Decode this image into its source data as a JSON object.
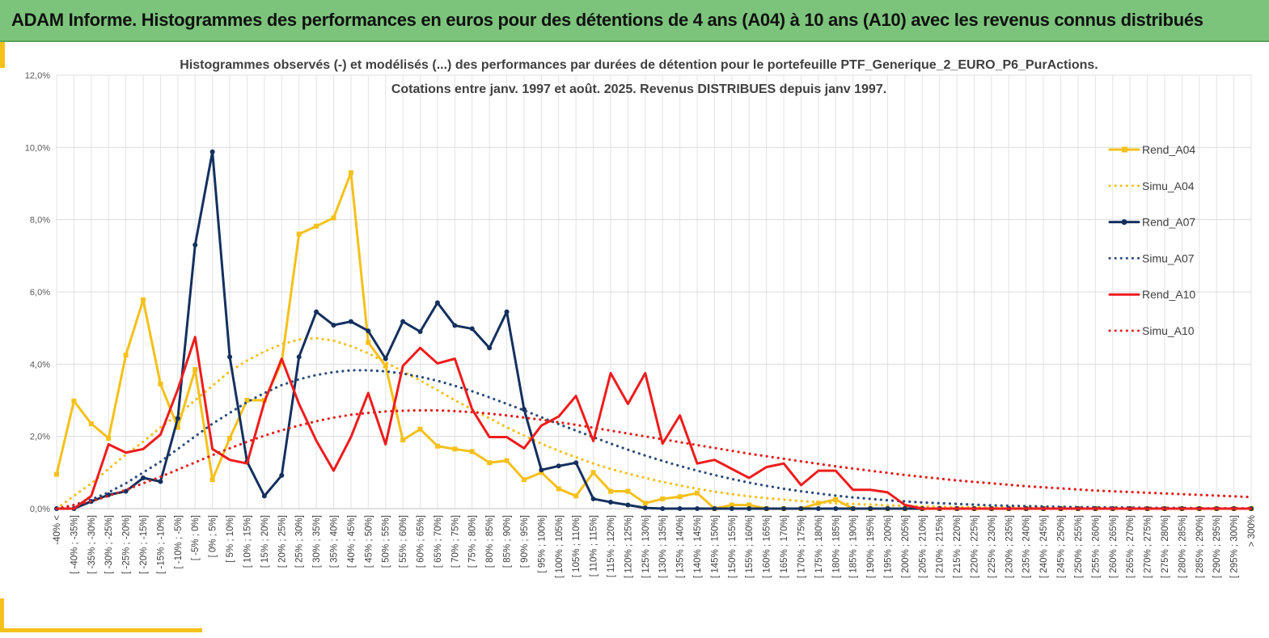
{
  "header": {
    "title": "ADAM Informe. Histogrammes des performances en euros pour des détentions de 4 ans (A04) à 10 ans (A10) avec les revenus connus distribués"
  },
  "chart_data": {
    "type": "line",
    "title": "Histogrammes observés (-) et modélisés (...) des performances par durées de détention pour le portefeuille PTF_Generique_2_EURO_P6_PurActions.",
    "subtitle": "Cotations entre janv. 1997 et août. 2025. Revenus DISTRIBUES depuis janv 1997.",
    "xlabel": "",
    "ylabel": "",
    "ylim": [
      0,
      12
    ],
    "y_unit": "%",
    "y_ticks": [
      "0,0%",
      "2,0%",
      "4,0%",
      "6,0%",
      "8,0%",
      "10,0%",
      "12,0%"
    ],
    "grid": true,
    "legend_position": "right",
    "categories": [
      "-40% <",
      "[ -40% ; -35%]",
      "[ -35% ; -30%]",
      "[ -30% ; -25%]",
      "[ -25% ; -20%]",
      "[ -20% ; -15%]",
      "[ -15% ; -10%]",
      "[ -10% ; -5%]",
      "[ -5% ; 0%]",
      "[ 0% ; 5%]",
      "[ 5% ; 10%]",
      "[ 10% ; 15%]",
      "[ 15% ; 20%]",
      "[ 20% ; 25%]",
      "[ 25% ; 30%]",
      "[ 30% ; 35%]",
      "[ 35% ; 40%]",
      "[ 40% ; 45%]",
      "[ 45% ; 50%]",
      "[ 50% ; 55%]",
      "[ 55% ; 60%]",
      "[ 60% ; 65%]",
      "[ 65% ; 70%]",
      "[ 70% ; 75%]",
      "[ 75% ; 80%]",
      "[ 80% ; 85%]",
      "[ 85% ; 90%]",
      "[ 90% ; 95%]",
      "[ 95% ; 100%]",
      "[ 100% ; 105%]",
      "[ 105% ; 110%]",
      "[ 110% ; 115%]",
      "[ 115% ; 120%]",
      "[ 120% ; 125%]",
      "[ 125% ; 130%]",
      "[ 130% ; 135%]",
      "[ 135% ; 140%]",
      "[ 140% ; 145%]",
      "[ 145% ; 150%]",
      "[ 150% ; 155%]",
      "[ 155% ; 160%]",
      "[ 160% ; 165%]",
      "[ 165% ; 170%]",
      "[ 170% ; 175%]",
      "[ 175% ; 180%]",
      "[ 180% ; 185%]",
      "[ 185% ; 190%]",
      "[ 190% ; 195%]",
      "[ 195% ; 200%]",
      "[ 200% ; 205%]",
      "[ 205% ; 210%]",
      "[ 210% ; 215%]",
      "[ 215% ; 220%]",
      "[ 220% ; 225%]",
      "[ 225% ; 230%]",
      "[ 230% ; 235%]",
      "[ 235% ; 240%]",
      "[ 240% ; 245%]",
      "[ 245% ; 250%]",
      "[ 250% ; 255%]",
      "[ 255% ; 260%]",
      "[ 260% ; 265%]",
      "[ 265% ; 270%]",
      "[ 270% ; 275%]",
      "[ 275% ; 280%]",
      "[ 280% ; 285%]",
      "[ 285% ; 290%]",
      "[ 290% ; 295%]",
      "[ 295% ; 300%]",
      "> 300%"
    ],
    "series": [
      {
        "name": "Rend_A04",
        "color": "#f5c01a",
        "style": "solid",
        "marker": "square",
        "values": [
          0.95,
          2.98,
          2.35,
          1.95,
          4.25,
          5.78,
          3.45,
          2.25,
          3.85,
          0.8,
          1.95,
          3.0,
          3.0,
          4.05,
          7.6,
          7.82,
          8.05,
          9.3,
          4.6,
          3.95,
          1.9,
          2.2,
          1.73,
          1.65,
          1.58,
          1.27,
          1.33,
          0.8,
          1.0,
          0.55,
          0.35,
          1.0,
          0.48,
          0.48,
          0.15,
          0.27,
          0.33,
          0.43,
          0.0,
          0.1,
          0.1,
          0.0,
          0.0,
          0.0,
          0.15,
          0.25,
          0.0,
          0.0,
          0.0,
          0.0,
          0.0,
          0.0,
          0.0,
          0.0,
          0.0,
          0.0,
          0.0,
          0.0,
          0.0,
          0.0,
          0.0,
          0.0,
          0.0,
          0.0,
          0.0,
          0.0,
          0.0,
          0.0,
          0.0,
          0.0
        ]
      },
      {
        "name": "Simu_A04",
        "color": "#f5c01a",
        "style": "dotted",
        "values": [
          0.0,
          0.35,
          0.7,
          1.1,
          1.5,
          1.85,
          2.25,
          2.6,
          3.0,
          3.4,
          3.8,
          4.1,
          4.35,
          4.55,
          4.68,
          4.72,
          4.65,
          4.5,
          4.3,
          4.05,
          3.8,
          3.55,
          3.28,
          3.0,
          2.75,
          2.5,
          2.25,
          2.02,
          1.8,
          1.6,
          1.42,
          1.25,
          1.1,
          0.97,
          0.85,
          0.74,
          0.64,
          0.55,
          0.47,
          0.4,
          0.34,
          0.29,
          0.25,
          0.21,
          0.18,
          0.15,
          0.13,
          0.11,
          0.09,
          0.08,
          0.06,
          0.05,
          0.04,
          0.04,
          0.03,
          0.03,
          0.02,
          0.02,
          0.01,
          0.01,
          0.01,
          0.01,
          0.0,
          0.0,
          0.0,
          0.0,
          0.0,
          0.0,
          0.0,
          0.0
        ]
      },
      {
        "name": "Rend_A07",
        "color": "#14305e",
        "style": "solid",
        "marker": "circle",
        "values": [
          0.0,
          0.0,
          0.2,
          0.38,
          0.48,
          0.85,
          0.75,
          2.5,
          7.3,
          9.88,
          4.2,
          1.3,
          0.35,
          0.92,
          4.2,
          5.45,
          5.08,
          5.18,
          4.92,
          4.15,
          5.18,
          4.9,
          5.7,
          5.07,
          4.98,
          4.45,
          5.45,
          2.75,
          1.07,
          1.18,
          1.27,
          0.27,
          0.18,
          0.1,
          0.02,
          0.0,
          0.0,
          0.0,
          0.0,
          0.0,
          0.0,
          0.0,
          0.0,
          0.0,
          0.0,
          0.0,
          0.0,
          0.0,
          0.0,
          0.0,
          0.0,
          0.0,
          0.0,
          0.0,
          0.0,
          0.0,
          0.0,
          0.0,
          0.0,
          0.0,
          0.0,
          0.0,
          0.0,
          0.0,
          0.0,
          0.0,
          0.0,
          0.0,
          0.0,
          0.0
        ]
      },
      {
        "name": "Simu_A07",
        "color": "#2e4d7a",
        "style": "dotted",
        "values": [
          0.0,
          0.1,
          0.25,
          0.45,
          0.7,
          1.0,
          1.3,
          1.65,
          2.0,
          2.35,
          2.65,
          2.95,
          3.2,
          3.42,
          3.58,
          3.7,
          3.78,
          3.83,
          3.83,
          3.8,
          3.74,
          3.65,
          3.54,
          3.4,
          3.25,
          3.08,
          2.9,
          2.72,
          2.53,
          2.34,
          2.16,
          1.98,
          1.8,
          1.63,
          1.47,
          1.32,
          1.18,
          1.05,
          0.93,
          0.82,
          0.72,
          0.63,
          0.55,
          0.48,
          0.42,
          0.36,
          0.31,
          0.27,
          0.23,
          0.2,
          0.17,
          0.15,
          0.13,
          0.11,
          0.09,
          0.08,
          0.07,
          0.06,
          0.05,
          0.04,
          0.04,
          0.03,
          0.03,
          0.02,
          0.02,
          0.02,
          0.01,
          0.01,
          0.01,
          0.01
        ]
      },
      {
        "name": "Rend_A10",
        "color": "#ee1c1c",
        "style": "solid",
        "marker": "none",
        "values": [
          0.0,
          0.0,
          0.35,
          1.78,
          1.55,
          1.65,
          2.05,
          3.3,
          4.75,
          1.65,
          1.35,
          1.25,
          2.95,
          4.15,
          2.9,
          1.88,
          1.05,
          1.98,
          3.2,
          1.78,
          3.95,
          4.45,
          4.02,
          4.15,
          2.75,
          1.98,
          1.98,
          1.67,
          2.3,
          2.55,
          3.12,
          1.87,
          3.75,
          2.9,
          3.75,
          1.8,
          2.58,
          1.25,
          1.35,
          1.1,
          0.85,
          1.15,
          1.25,
          0.65,
          1.05,
          1.05,
          0.52,
          0.52,
          0.45,
          0.1,
          0.0,
          0.0,
          0.0,
          0.0,
          0.0,
          0.0,
          0.0,
          0.0,
          0.0,
          0.0,
          0.0,
          0.0,
          0.0,
          0.0,
          0.0,
          0.0,
          0.0,
          0.0,
          0.0,
          0.0
        ]
      },
      {
        "name": "Simu_A10",
        "color": "#e0201c",
        "style": "dotted",
        "values": [
          0.0,
          0.1,
          0.2,
          0.35,
          0.52,
          0.7,
          0.88,
          1.08,
          1.28,
          1.48,
          1.67,
          1.85,
          2.02,
          2.17,
          2.3,
          2.42,
          2.52,
          2.6,
          2.65,
          2.69,
          2.71,
          2.72,
          2.72,
          2.7,
          2.67,
          2.63,
          2.58,
          2.52,
          2.46,
          2.39,
          2.32,
          2.24,
          2.16,
          2.08,
          2.0,
          1.92,
          1.84,
          1.76,
          1.68,
          1.6,
          1.52,
          1.45,
          1.38,
          1.31,
          1.24,
          1.17,
          1.11,
          1.05,
          0.99,
          0.93,
          0.88,
          0.83,
          0.78,
          0.74,
          0.7,
          0.66,
          0.62,
          0.59,
          0.56,
          0.53,
          0.5,
          0.48,
          0.46,
          0.44,
          0.42,
          0.4,
          0.38,
          0.36,
          0.34,
          0.32
        ]
      }
    ]
  }
}
